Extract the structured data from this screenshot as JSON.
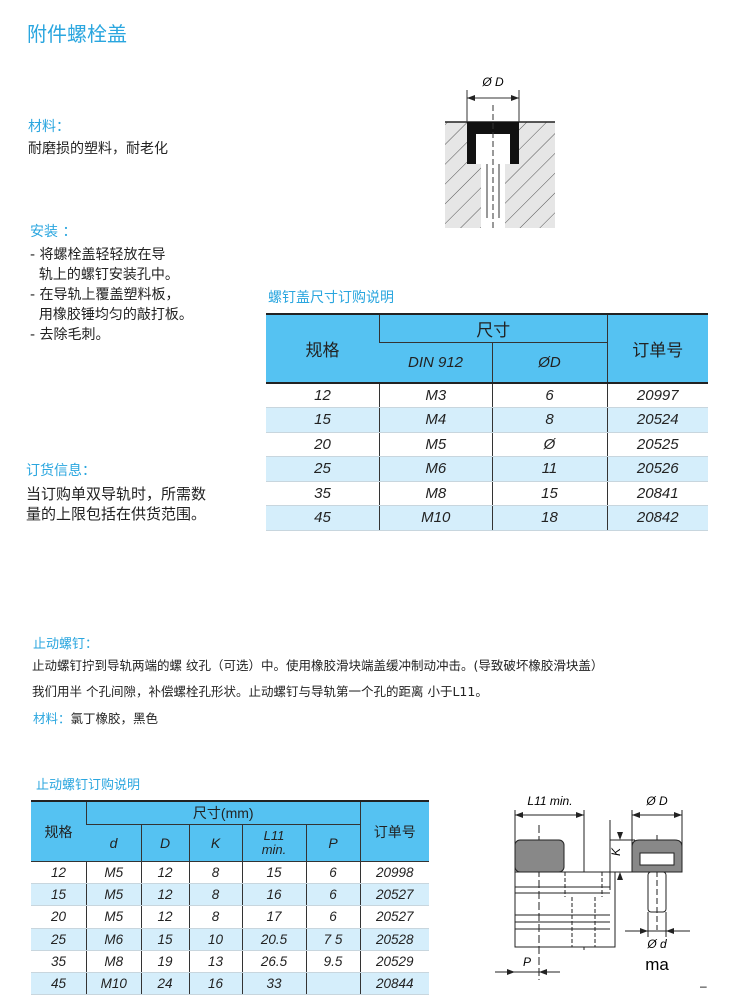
{
  "title": "附件螺栓盖",
  "material": {
    "label": "材料：",
    "text": "耐磨损的塑料，耐老化"
  },
  "install": {
    "label": "安装 ：",
    "items": [
      "- 将螺栓盖轻轻放在导",
      "  轨上的螺钉安装孔中。",
      "- 在导轨上覆盖塑料板，",
      "  用橡胶锤均匀的敲打板。",
      "- 去除毛刺。"
    ]
  },
  "order_info": {
    "label": "订货信息：",
    "lines": [
      "当订购单双导轨时，所需数",
      "量的上限包括在供货范围。"
    ]
  },
  "cap_diagram": {
    "dim_label": "Ø D"
  },
  "cap_table": {
    "caption": "螺钉盖尺寸订购说明",
    "headers": {
      "spec": "规格",
      "size": "尺寸",
      "din": "DIN 912",
      "od": "ØD",
      "order": "订单号"
    },
    "rows": [
      [
        "12",
        "M3",
        "6",
        "20997"
      ],
      [
        "15",
        "M4",
        "8",
        "20524"
      ],
      [
        "20",
        "M5",
        "Ø",
        "20525"
      ],
      [
        "25",
        "M6",
        "11",
        "20526"
      ],
      [
        "35",
        "M8",
        "15",
        "20841"
      ],
      [
        "45",
        "M10",
        "18",
        "20842"
      ]
    ]
  },
  "stop_screw": {
    "label": "止动螺钉：",
    "lines": [
      "止动螺钉拧到导轨两端的螺 纹孔（可选）中。使用橡胶滑块端盖缓冲制动冲击。(导致破坏橡胶滑块盖）",
      "我们用半 个孔间隙，补偿螺栓孔形状。止动螺钉与导轨第一个孔的距离 小于L11。"
    ],
    "material_label": "材料：",
    "material_text": "氯丁橡胶，黑色"
  },
  "stop_table": {
    "caption": "止动螺钉订购说明",
    "headers": {
      "spec": "规格",
      "size": "尺寸(mm)",
      "cols": [
        "d",
        "D",
        "K",
        "L11\nmin.",
        "P"
      ],
      "order": "订单号"
    },
    "rows": [
      [
        "12",
        "M5",
        "12",
        "8",
        "15",
        "6",
        "20998"
      ],
      [
        "15",
        "M5",
        "12",
        "8",
        "16",
        "6",
        "20527"
      ],
      [
        "20",
        "M5",
        "12",
        "8",
        "17",
        "6",
        "20527"
      ],
      [
        "25",
        "M6",
        "15",
        "10",
        "20.5",
        "7 5",
        "20528"
      ],
      [
        "35",
        "M8",
        "19",
        "13",
        "26.5",
        "9.5",
        "20529"
      ],
      [
        "45",
        "M10",
        "24",
        "16",
        "33",
        "",
        "20844"
      ]
    ]
  },
  "stop_diagram": {
    "l11": "L11 min.",
    "od": "Ø D",
    "k": "K",
    "d": "Ø d",
    "p": "P",
    "ma": "ma",
    "dash": "–"
  }
}
